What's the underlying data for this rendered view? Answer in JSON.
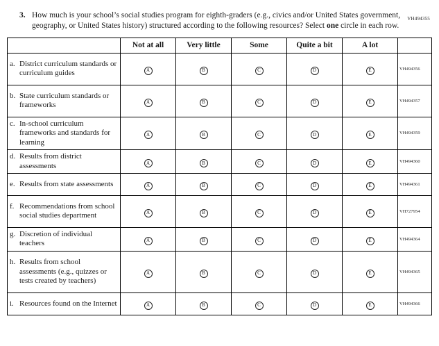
{
  "page_code": "VH494355",
  "question": {
    "number": "3.",
    "text_before": "How much is your school’s social studies program for eighth-graders (e.g., civics and/or United States government, geography, or United States history) structured according to the following resources? Select ",
    "emphasis": "one",
    "text_after": " circle in each row."
  },
  "table": {
    "columns": [
      "Not at all",
      "Very little",
      "Some",
      "Quite a bit",
      "A lot"
    ],
    "column_keys": [
      "not-at-all",
      "very-little",
      "some",
      "quite-a-bit",
      "a-lot"
    ],
    "bubble_letters": [
      "A",
      "B",
      "C",
      "D",
      "E"
    ],
    "rows": [
      {
        "letter": "a.",
        "label": "District curriculum standards or curriculum guides",
        "code": "VH494356",
        "lines": 3
      },
      {
        "letter": "b.",
        "label": "State curriculum standards or frameworks",
        "code": "VH494357",
        "lines": 3
      },
      {
        "letter": "c.",
        "label": "In-school curriculum frameworks and standards for learning",
        "code": "VH494359",
        "lines": 3
      },
      {
        "letter": "d.",
        "label": "Results from district assessments",
        "code": "VH494360",
        "lines": 2
      },
      {
        "letter": "e.",
        "label": "Results from state assessments",
        "code": "VH494361",
        "lines": 2
      },
      {
        "letter": "f.",
        "label": "Recommendations from school social studies department",
        "code": "VH727954",
        "lines": 3
      },
      {
        "letter": "g.",
        "label": "Discretion of individual teachers",
        "code": "VH494364",
        "lines": 2
      },
      {
        "letter": "h.",
        "label": "Results from school assessments (e.g., quizzes or tests created by teachers)",
        "code": "VH494365",
        "lines": 4
      },
      {
        "letter": "i.",
        "label": "Resources found on the Internet",
        "code": "VH494366",
        "lines": 2
      }
    ]
  }
}
